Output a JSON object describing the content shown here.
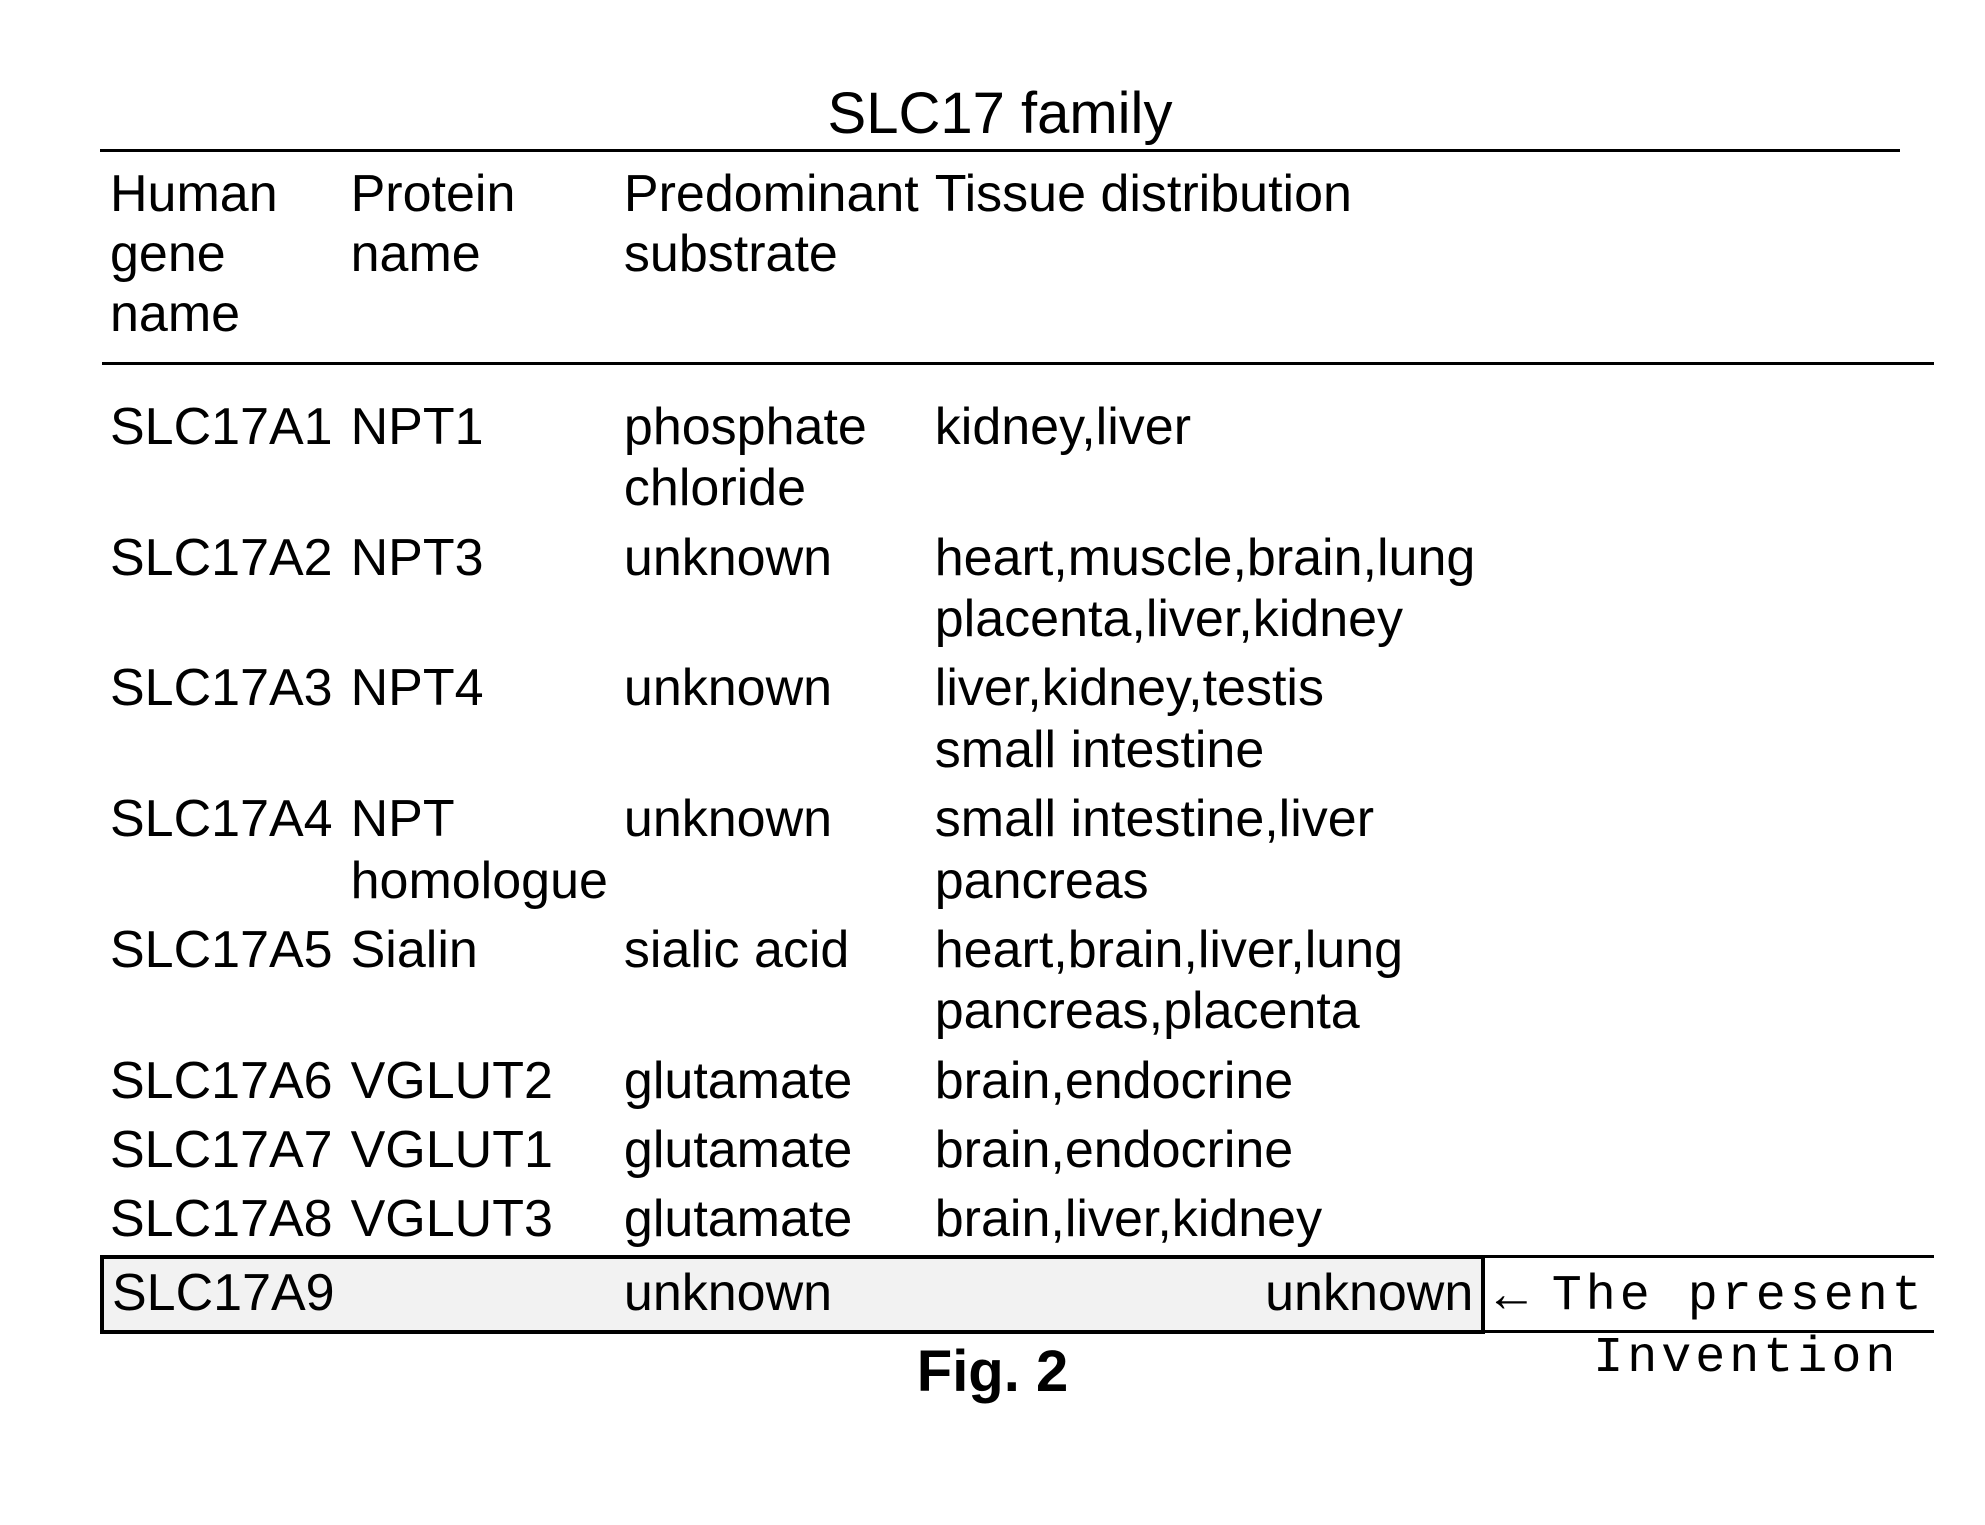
{
  "title": "SLC17 family",
  "columns": [
    "Human gene\nname",
    "Protein name",
    "Predominant\nsubstrate",
    "Tissue distribution"
  ],
  "rows": [
    {
      "gene": "SLC17A1",
      "protein": "NPT1",
      "substrate": "phosphate\nchloride",
      "tissue": "kidney,liver"
    },
    {
      "gene": "SLC17A2",
      "protein": "NPT3",
      "substrate": "unknown",
      "tissue": "heart,muscle,brain,lung\nplacenta,liver,kidney"
    },
    {
      "gene": "SLC17A3",
      "protein": "NPT4",
      "substrate": "unknown",
      "tissue": "liver,kidney,testis\nsmall intestine"
    },
    {
      "gene": "SLC17A4",
      "protein": "NPT\nhomologue",
      "substrate": "unknown",
      "tissue": "small intestine,liver\npancreas"
    },
    {
      "gene": "SLC17A5",
      "protein": "Sialin",
      "substrate": "sialic acid",
      "tissue": "heart,brain,liver,lung\npancreas,placenta"
    },
    {
      "gene": "SLC17A6",
      "protein": "VGLUT2",
      "substrate": "glutamate",
      "tissue": "brain,endocrine"
    },
    {
      "gene": "SLC17A7",
      "protein": "VGLUT1",
      "substrate": "glutamate",
      "tissue": "brain,endocrine"
    },
    {
      "gene": "SLC17A8",
      "protein": "VGLUT3",
      "substrate": "glutamate",
      "tissue": "brain,liver,kidney"
    }
  ],
  "highlight_row": {
    "gene": "SLC17A9",
    "protein": "",
    "substrate": "unknown",
    "tissue": "unknown"
  },
  "annotation": {
    "arrow": "←",
    "line1": "The present",
    "line2": "Invention"
  },
  "caption": "Fig. 2",
  "colors": {
    "text": "#000000",
    "background": "#ffffff",
    "highlight_bg": "#f2f2f2",
    "rule": "#000000"
  }
}
